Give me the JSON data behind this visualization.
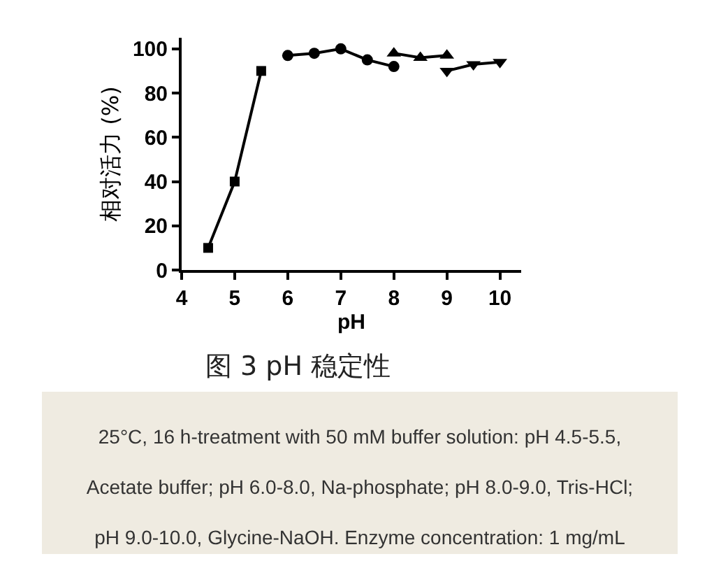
{
  "chart_data": {
    "type": "line",
    "xlabel": "pH",
    "ylabel": "相对活力 (%)",
    "xlim": [
      4,
      10.4
    ],
    "xticks": [
      4,
      5,
      6,
      7,
      8,
      9,
      10
    ],
    "ylim": [
      0,
      105
    ],
    "yticks": [
      0,
      20,
      40,
      60,
      80,
      100
    ],
    "line_style": "solid",
    "series": [
      {
        "x": [
          4.5,
          5,
          5.5
        ],
        "values": [
          10,
          40,
          90
        ],
        "color": "#000000",
        "marker": "square"
      },
      {
        "x": [
          6,
          6.5,
          7,
          7.5,
          8
        ],
        "values": [
          97,
          98,
          100,
          95,
          92
        ],
        "color": "#000000",
        "marker": "circle"
      },
      {
        "x": [
          8,
          8.5,
          9
        ],
        "values": [
          98,
          96,
          97
        ],
        "color": "#000000",
        "marker": "triangle"
      },
      {
        "x": [
          9,
          9.5,
          10
        ],
        "values": [
          90,
          93,
          94
        ],
        "color": "#000000",
        "marker": "triangle-down"
      }
    ],
    "annotations": [
      "图 3 pH 稳定性",
      "25°C, 16 h-treatment with 50 mM buffer solution: pH 4.5-5.5, Acetate buffer; pH 6.0-8.0, Na-phosphate; pH 8.0-9.0, Tris-HCl; pH 9.0-10.0, Glycine-NaOH. Enzyme concentration: 1 mg/mL"
    ]
  }
}
